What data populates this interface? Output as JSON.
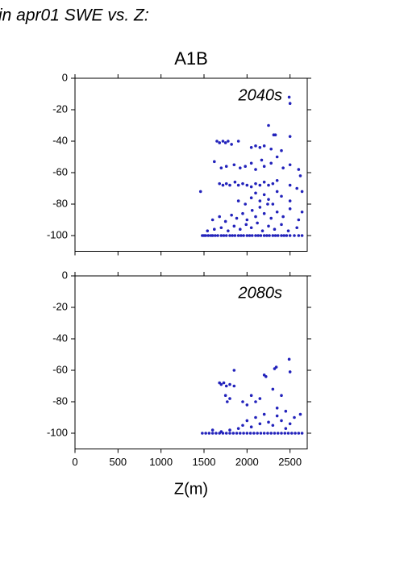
{
  "header": "in apr01 SWE vs. Z:",
  "chart_data": [
    {
      "type": "scatter",
      "title": "A1B",
      "annotation": "2040s",
      "color": "#2222bb",
      "xlim": [
        0,
        2700
      ],
      "ylim": [
        -110,
        0
      ],
      "xticks": [
        0,
        500,
        1000,
        1500,
        2000,
        2500
      ],
      "yticks": [
        0,
        -20,
        -40,
        -60,
        -80,
        -100
      ],
      "grid": false,
      "x": [
        1480,
        1500,
        1520,
        1550,
        1580,
        1600,
        1630,
        1660,
        1700,
        1730,
        1760,
        1800,
        1830,
        1860,
        1900,
        1930,
        1960,
        2000,
        2030,
        2060,
        2100,
        2130,
        2160,
        2200,
        2230,
        2260,
        2300,
        2330,
        2360,
        2400,
        2430,
        2460,
        2500,
        2550,
        2600,
        2640,
        1540,
        1620,
        1700,
        1780,
        1850,
        1920,
        1990,
        2050,
        2120,
        2180,
        2250,
        2320,
        2400,
        2480,
        2580,
        1600,
        1680,
        1750,
        1820,
        1880,
        1950,
        2000,
        2060,
        2100,
        2150,
        2200,
        2240,
        2280,
        2350,
        2420,
        2500,
        2600,
        2640,
        1900,
        1980,
        2050,
        2100,
        2150,
        2200,
        2250,
        2300,
        2350,
        2400,
        2500,
        2580,
        2640,
        1460,
        1680,
        1720,
        1760,
        1800,
        1860,
        1900,
        1950,
        2000,
        2050,
        2100,
        2150,
        2200,
        2250,
        2300,
        2350,
        2500,
        2620,
        1620,
        1700,
        1760,
        1850,
        1920,
        1980,
        2050,
        2100,
        2170,
        2200,
        2280,
        2350,
        2420,
        2500,
        2600,
        1650,
        1680,
        1720,
        1750,
        1780,
        1820,
        1900,
        2050,
        2100,
        2150,
        2200,
        2280,
        2310,
        2330,
        2400,
        2500,
        2250,
        2490,
        2500
      ],
      "y": [
        -100,
        -100,
        -100,
        -100,
        -100,
        -100,
        -100,
        -100,
        -100,
        -100,
        -100,
        -100,
        -100,
        -100,
        -100,
        -100,
        -100,
        -100,
        -100,
        -100,
        -100,
        -100,
        -100,
        -100,
        -100,
        -100,
        -100,
        -100,
        -100,
        -100,
        -100,
        -100,
        -100,
        -100,
        -100,
        -100,
        -97,
        -96,
        -95,
        -97,
        -94,
        -96,
        -93,
        -95,
        -92,
        -97,
        -94,
        -96,
        -93,
        -97,
        -95,
        -90,
        -88,
        -91,
        -87,
        -89,
        -86,
        -90,
        -84,
        -88,
        -82,
        -86,
        -80,
        -89,
        -85,
        -88,
        -83,
        -90,
        -85,
        -78,
        -80,
        -76,
        -73,
        -78,
        -74,
        -77,
        -80,
        -72,
        -75,
        -78,
        -70,
        -72,
        -72,
        -67,
        -68,
        -67,
        -68,
        -66,
        -68,
        -67,
        -68,
        -69,
        -67,
        -68,
        -66,
        -68,
        -67,
        -65,
        -68,
        -62,
        -53,
        -57,
        -56,
        -55,
        -57,
        -56,
        -54,
        -58,
        -52,
        -56,
        -54,
        -50,
        -57,
        -55,
        -58,
        -40,
        -41,
        -40,
        -41,
        -40,
        -42,
        -40,
        -44,
        -43,
        -44,
        -43,
        -45,
        -36,
        -36,
        -46,
        -37,
        -30,
        -12,
        -16
      ]
    },
    {
      "type": "scatter",
      "annotation": "2080s",
      "xlabel": "Z(m)",
      "color": "#2222bb",
      "xlim": [
        0,
        2700
      ],
      "ylim": [
        -110,
        0
      ],
      "xticks": [
        0,
        500,
        1000,
        1500,
        2000,
        2500
      ],
      "yticks": [
        0,
        -20,
        -40,
        -60,
        -80,
        -100
      ],
      "grid": false,
      "x": [
        1480,
        1520,
        1560,
        1600,
        1640,
        1680,
        1720,
        1760,
        1800,
        1840,
        1880,
        1920,
        1960,
        2000,
        2040,
        2080,
        2120,
        2160,
        2200,
        2240,
        2280,
        2320,
        2360,
        2400,
        2440,
        2480,
        2520,
        2560,
        2600,
        2640,
        1700,
        1800,
        1900,
        1950,
        2000,
        2050,
        2100,
        2150,
        2200,
        2250,
        2300,
        2350,
        2400,
        2450,
        2500,
        2550,
        2620,
        1600,
        1680,
        1700,
        1730,
        1760,
        1800,
        1850,
        1750,
        1770,
        1800,
        1850,
        1950,
        2000,
        2050,
        2100,
        2150,
        2200,
        2220,
        2300,
        2320,
        2340,
        2400,
        2500,
        2490,
        2350,
        2450
      ],
      "y": [
        -100,
        -100,
        -100,
        -100,
        -100,
        -100,
        -100,
        -100,
        -100,
        -100,
        -100,
        -100,
        -100,
        -100,
        -100,
        -100,
        -100,
        -100,
        -100,
        -100,
        -100,
        -100,
        -100,
        -100,
        -100,
        -100,
        -100,
        -100,
        -100,
        -100,
        -99,
        -98,
        -97,
        -95,
        -92,
        -96,
        -90,
        -94,
        -88,
        -93,
        -95,
        -89,
        -92,
        -97,
        -94,
        -90,
        -88,
        -98,
        -68,
        -69,
        -68,
        -70,
        -69,
        -70,
        -76,
        -80,
        -78,
        -60,
        -80,
        -82,
        -76,
        -80,
        -78,
        -63,
        -64,
        -72,
        -59,
        -58,
        -76,
        -61,
        -53,
        -84,
        -86
      ]
    }
  ]
}
